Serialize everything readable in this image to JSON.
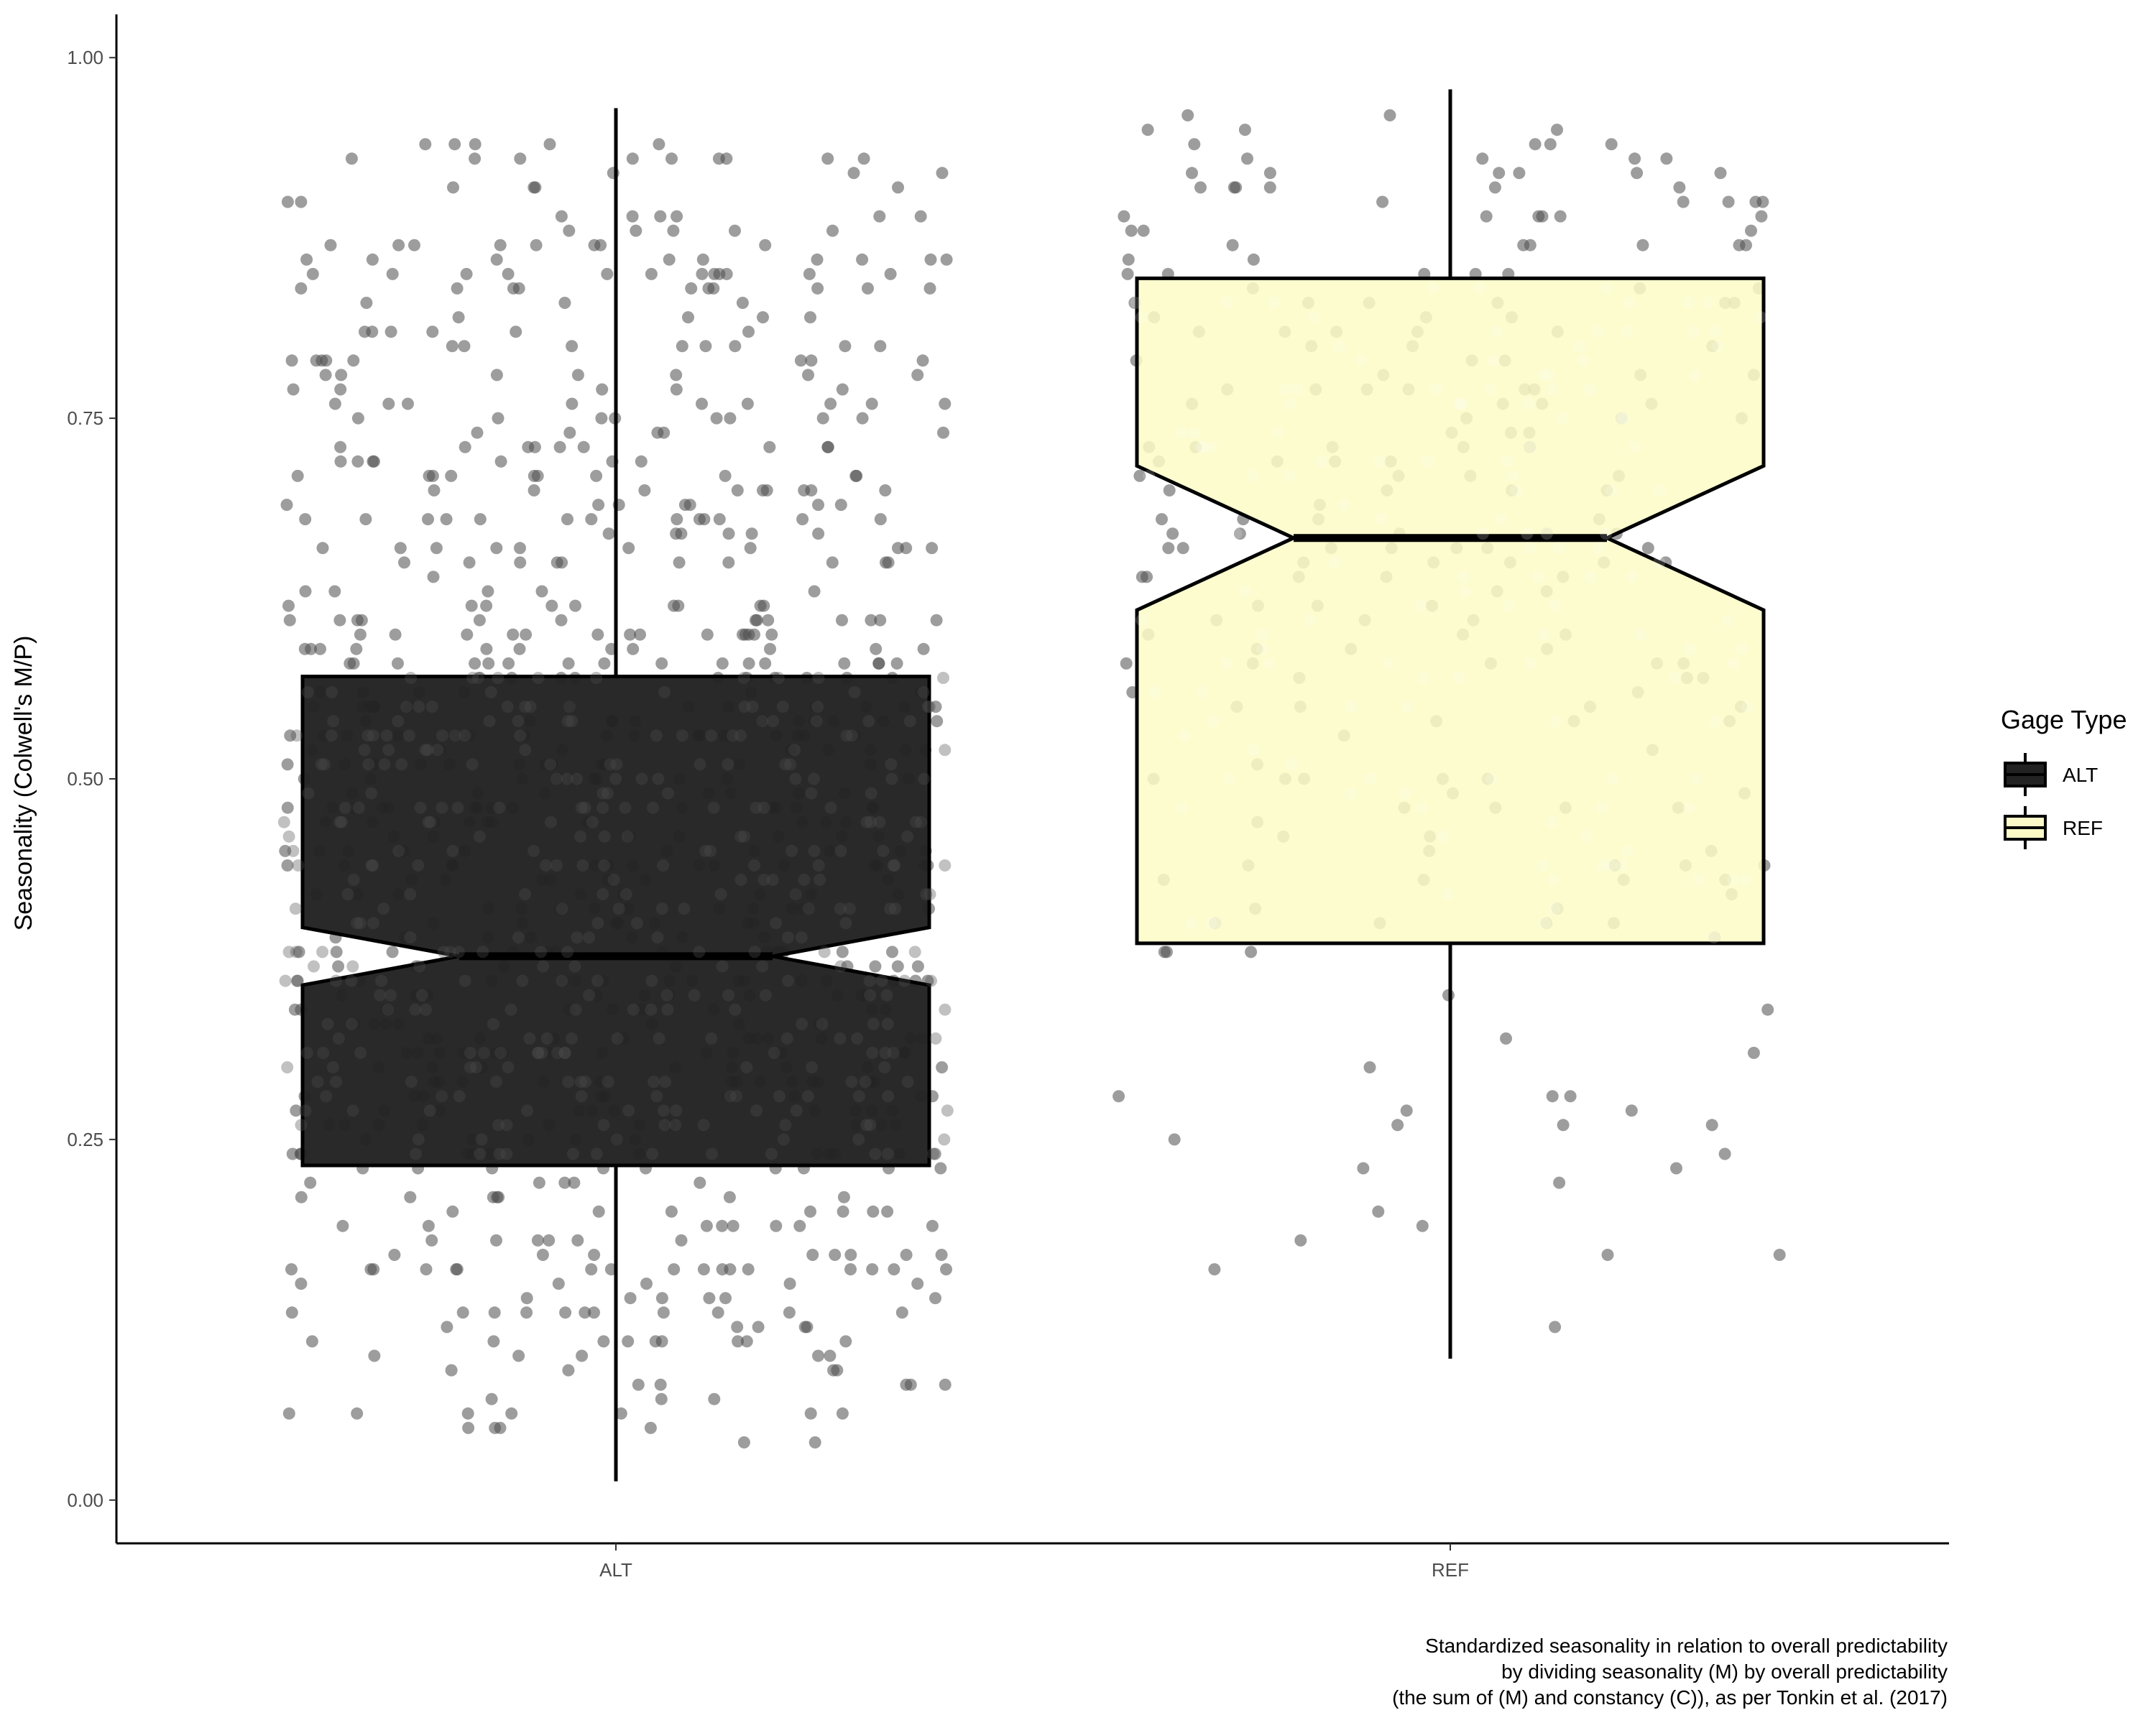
{
  "chart_data": {
    "type": "boxplot",
    "title": "",
    "xlabel": "",
    "ylabel": "Seasonality (Colwell's M/P)",
    "categories": [
      "ALT",
      "REF"
    ],
    "ylim": [
      -0.03,
      1.03
    ],
    "yticks": [
      {
        "value": 0.0,
        "label": "0.00"
      },
      {
        "value": 0.25,
        "label": "0.25"
      },
      {
        "value": 0.5,
        "label": "0.50"
      },
      {
        "value": 0.75,
        "label": "0.75"
      },
      {
        "value": 1.0,
        "label": "1.00"
      }
    ],
    "grid": false,
    "notched": true,
    "jitter_points": true,
    "boxes": [
      {
        "category": "ALT",
        "whisker_low": 0.013,
        "q1": 0.232,
        "median": 0.377,
        "q3": 0.571,
        "whisker_high": 0.965,
        "notch_low": 0.357,
        "notch_high": 0.397,
        "color": "#222222"
      },
      {
        "category": "REF",
        "whisker_low": 0.098,
        "q1": 0.386,
        "median": 0.667,
        "q3": 0.847,
        "whisker_high": 0.978,
        "notch_low": 0.617,
        "notch_high": 0.717,
        "color": "#fcfbc7"
      }
    ],
    "legend": {
      "title": "Gage Type",
      "position": "right",
      "entries": [
        {
          "label": "ALT",
          "color": "#222222"
        },
        {
          "label": "REF",
          "color": "#fcfbc7"
        }
      ]
    },
    "caption": [
      "Standardized seasonality in relation to overall predictability",
      "by dividing seasonality (M) by overall predictability",
      "(the sum of (M) and constancy (C)), as per Tonkin et al. (2017)"
    ],
    "points": {
      "ALT": [
        0.93,
        0.62,
        0.16,
        0.08,
        0.8,
        0.53,
        0.87,
        0.51,
        0.4,
        0.09,
        0.57,
        0.85,
        0.42,
        0.43,
        0.35,
        0.29,
        0.26,
        0.57,
        0.75,
        0.58,
        0.72,
        0.71,
        0.73,
        0.14,
        0.65,
        0.25,
        0.16,
        0.86,
        0.52,
        0.58,
        0.73,
        0.42,
        0.34,
        0.05,
        0.71,
        0.69,
        0.84,
        0.87,
        0.44,
        0.4,
        0.5,
        0.93,
        0.93,
        0.41,
        0.26,
        0.47,
        0.6,
        0.42,
        0.3,
        0.51,
        0.83,
        0.26,
        0.81,
        0.2,
        0.71,
        0.94,
        0.89,
        0.08,
        0.55,
        0.38,
        0.71,
        0.81,
        0.85,
        0.51,
        0.48,
        0.53,
        0.61,
        0.19,
        0.24,
        0.31,
        0.72,
        0.57,
        0.84,
        0.16,
        0.71,
        0.33,
        0.1,
        0.42,
        0.53,
        0.49,
        0.43,
        0.15,
        0.31,
        0.66,
        0.34,
        0.55,
        0.77,
        0.49,
        0.44,
        0.18,
        0.1,
        0.46,
        0.62,
        0.2,
        0.76,
        0.16,
        0.21,
        0.58,
        0.49,
        0.71,
        0.74,
        0.04,
        0.78,
        0.55,
        0.35,
        0.43,
        0.13,
        0.29,
        0.24,
        0.27,
        0.27,
        0.69,
        0.38,
        0.34,
        0.61,
        0.75,
        0.6,
        0.88,
        0.79,
        0.16,
        0.89,
        0.53,
        0.39,
        0.48,
        0.44,
        0.25,
        0.34,
        0.33,
        0.75,
        0.44,
        0.85,
        0.36,
        0.29,
        0.5,
        0.14,
        0.94,
        0.31,
        0.18,
        0.78,
        0.36,
        0.66,
        0.91,
        0.12,
        0.37,
        0.23,
        0.35,
        0.44,
        0.32,
        0.11,
        0.65,
        0.04,
        0.18,
        0.28,
        0.51,
        0.72,
        0.2,
        0.48,
        0.06,
        0.82,
        0.17,
        0.45,
        0.16,
        0.81,
        0.25,
        0.42,
        0.61,
        0.66,
        0.51,
        0.71,
        0.5,
        0.42,
        0.23,
        0.53,
        0.16,
        0.93,
        0.54,
        0.64,
        0.51,
        0.26,
        0.86,
        0.8,
        0.59,
        0.59,
        0.73,
        0.93,
        0.39,
        0.7,
        0.59,
        0.6,
        0.11,
        0.8,
        0.55,
        0.28,
        0.5,
        0.55,
        0.54,
        0.68,
        0.13,
        0.4,
        0.53,
        0.45,
        0.84,
        0.76,
        0.8,
        0.67,
        0.36,
        0.31,
        0.13,
        0.36,
        0.43,
        0.34,
        0.31,
        0.11,
        0.62,
        0.31,
        0.17,
        0.66,
        0.68,
        0.41,
        0.73,
        0.58,
        0.8,
        0.61,
        0.78,
        0.62,
        0.3,
        0.53,
        0.13,
        0.55,
        0.46,
        0.63,
        0.7,
        0.18,
        0.68,
        0.11,
        0.72,
        0.65,
        0.38,
        0.24,
        0.68,
        0.94,
        0.1,
        0.32,
        0.36,
        0.44,
        0.48,
        0.23,
        0.68,
        0.71,
        0.2,
        0.63,
        0.29,
        0.21,
        0.92,
        0.54,
        0.57,
        0.56,
        0.35,
        0.17,
        0.76,
        0.41,
        0.46,
        0.33,
        0.77,
        0.68,
        0.6,
        0.75,
        0.34,
        0.47,
        0.05,
        0.44,
        0.7,
        0.76,
        0.52,
        0.09,
        0.41,
        0.75,
        0.31,
        0.38,
        0.6,
        0.32,
        0.22,
        0.84,
        0.53,
        0.31,
        0.61,
        0.62,
        0.05,
        0.49,
        0.83,
        0.85,
        0.92,
        0.17,
        0.27,
        0.31,
        0.28,
        0.67,
        0.45,
        0.32,
        0.6,
        0.41,
        0.29,
        0.87,
        0.51,
        0.54,
        0.4,
        0.35,
        0.42,
        0.58,
        0.84,
        0.79,
        0.81,
        0.16,
        0.72,
        0.87,
        0.69,
        0.93,
        0.24,
        0.84,
        0.88,
        0.28,
        0.82,
        0.82,
        0.09,
        0.61,
        0.85,
        0.65,
        0.86,
        0.7,
        0.65,
        0.5,
        0.92,
        0.65,
        0.27,
        0.63,
        0.21,
        0.56,
        0.34,
        0.74,
        0.51,
        0.27,
        0.59,
        0.91,
        0.62,
        0.85,
        0.55,
        0.12,
        0.19,
        0.87,
        0.47,
        0.58,
        0.79,
        0.9,
        0.21,
        0.15,
        0.26,
        0.75,
        0.82,
        0.27,
        0.73,
        0.78,
        0.07,
        0.58,
        0.38,
        0.06,
        0.16,
        0.26,
        0.39,
        0.48,
        0.25,
        0.49,
        0.79,
        0.28,
        0.38,
        0.45,
        0.67,
        0.88,
        0.65,
        0.24,
        0.51,
        0.37,
        0.11,
        0.52,
        0.13,
        0.35,
        0.11,
        0.32,
        0.53,
        0.34,
        0.13,
        0.48,
        0.18,
        0.22,
        0.68,
        0.76,
        0.55,
        0.26,
        0.37,
        0.14,
        0.08,
        0.67,
        0.55,
        0.78,
        0.29,
        0.26,
        0.23,
        0.1,
        0.32,
        0.31,
        0.44,
        0.4,
        0.07,
        0.67,
        0.73,
        0.69,
        0.84,
        0.24,
        0.59,
        0.74,
        0.3,
        0.3,
        0.35,
        0.53,
        0.77,
        0.26,
        0.7,
        0.11,
        0.35,
        0.33,
        0.51,
        0.51,
        0.24,
        0.47,
        0.85,
        0.63,
        0.74,
        0.45,
        0.4,
        0.27,
        0.59,
        0.79,
        0.83,
        0.65,
        0.61,
        0.48,
        0.41,
        0.72,
        0.77,
        0.85,
        0.26,
        0.3,
        0.24,
        0.6,
        0.62,
        0.38,
        0.3,
        0.61,
        0.16,
        0.89,
        0.91,
        0.18,
        0.88,
        0.51,
        0.51,
        0.54,
        0.29,
        0.19,
        0.93,
        0.76,
        0.24,
        0.15,
        0.13,
        0.23,
        0.58,
        0.48,
        0.16,
        0.78,
        0.28,
        0.56,
        0.32,
        0.55,
        0.36,
        0.47,
        0.38,
        0.36,
        0.59,
        0.5,
        0.76,
        0.9,
        0.7,
        0.22,
        0.59,
        0.54,
        0.44,
        0.13,
        0.41,
        0.08,
        0.44,
        0.61,
        0.27,
        0.67,
        0.34,
        0.5,
        0.58,
        0.87,
        0.1,
        0.72,
        0.19,
        0.93,
        0.76,
        0.65,
        0.35,
        0.48,
        0.36,
        0.42,
        0.36,
        0.47,
        0.06,
        0.43,
        0.47,
        0.39,
        0.31,
        0.86,
        0.59,
        0.85,
        0.24,
        0.66,
        0.07,
        0.11,
        0.47,
        0.65,
        0.89,
        0.86,
        0.35,
        0.68,
        0.69,
        0.48,
        0.75,
        0.58,
        0.71,
        0.78,
        0.47,
        0.11,
        0.73,
        0.44,
        0.69,
        0.32,
        0.71,
        0.24,
        0.54,
        0.14,
        0.17,
        0.48,
        0.36,
        0.37,
        0.86,
        0.52,
        0.68,
        0.17,
        0.48,
        0.87,
        0.81,
        0.89,
        0.84,
        0.45,
        0.7,
        0.47,
        0.76,
        0.5,
        0.57,
        0.25,
        0.31,
        0.56,
        0.53,
        0.31,
        0.39,
        0.31,
        0.55,
        0.19,
        0.54,
        0.25,
        0.12,
        0.53,
        0.58,
        0.27,
        0.17,
        0.58,
        0.47,
        0.33,
        0.28,
        0.17,
        0.23,
        0.23,
        0.52,
        0.66,
        0.79,
        0.28,
        0.54,
        0.16,
        0.12,
        0.29,
        0.41,
        0.59,
        0.74,
        0.44,
        0.8,
        0.41,
        0.87,
        0.56,
        0.38,
        0.58,
        0.37,
        0.22,
        0.49,
        0.09,
        0.44,
        0.68,
        0.6,
        0.6,
        0.38,
        0.14,
        0.19,
        0.16,
        0.54,
        0.33,
        0.3,
        0.23,
        0.31,
        0.91,
        0.47,
        0.31,
        0.79,
        0.45,
        0.86,
        0.69,
        0.36,
        0.19,
        0.89,
        0.57,
        0.6,
        0.28,
        0.88,
        0.37,
        0.56,
        0.36,
        0.37,
        0.33,
        0.14,
        0.66,
        0.29,
        0.68,
        0.21,
        0.06,
        0.43,
        0.41,
        0.13,
        0.46,
        0.36,
        0.58,
        0.52,
        0.48,
        0.53,
        0.23,
        0.48,
        0.34,
        0.45,
        0.61,
        0.39,
        0.28,
        0.61,
        0.39,
        0.16,
        0.85,
        0.57,
        0.7,
        0.73,
        0.19,
        0.24,
        0.48,
        0.62,
        0.32,
        0.68,
        0.6,
        0.36,
        0.81,
        0.21,
        0.36,
        0.29,
        0.29,
        0.5,
        0.85,
        0.38,
        0.55,
        0.61,
        0.53,
        0.29,
        0.7,
        0.13,
        0.59,
        0.16,
        0.45,
        0.2,
        0.51,
        0.22,
        0.15,
        0.66,
        0.75,
        0.54,
        0.6,
        0.8,
        0.06,
        0.93,
        0.29,
        0.85,
        0.38,
        0.32,
        0.84,
        0.3,
        0.58,
        0.94,
        0.4,
        0.12,
        0.43,
        0.66,
        0.44,
        0.77,
        0.46,
        0.53,
        0.21,
        0.73,
        0.32,
        0.37,
        0.52,
        0.46,
        0.8,
        0.52,
        0.6,
        0.94,
        0.49,
        0.46,
        0.86,
        0.57,
        0.63,
        0.05,
        0.66,
        0.84,
        0.13,
        0.86,
        0.28,
        0.53,
        0.2,
        0.79,
        0.53,
        0.6,
        0.58,
        0.61,
        0.5,
        0.68,
        0.15,
        0.16,
        0.06,
        0.06,
        0.38,
        0.55,
        0.42,
        0.57,
        0.2,
        0.45,
        0.08,
        0.62,
        0.16,
        0.57,
        0.46,
        0.27,
        0.41
      ],
      "REF": [
        0.71,
        0.61,
        0.81,
        0.85,
        0.96,
        0.62,
        0.62,
        0.65,
        0.28,
        0.58,
        0.68,
        0.25,
        0.92,
        0.48,
        0.17,
        0.58,
        0.35,
        0.28,
        0.46,
        0.38,
        0.7,
        0.87,
        0.68,
        0.92,
        0.66,
        0.83,
        0.64,
        0.38,
        0.83,
        0.77,
        0.8,
        0.65,
        0.38,
        0.67,
        0.89,
        0.48,
        0.64,
        0.88,
        0.9,
        0.93,
        0.18,
        0.16,
        0.27,
        0.46,
        0.73,
        0.26,
        0.39,
        0.5,
        0.58,
        0.34,
        0.2,
        0.8,
        0.44,
        0.41,
        0.85,
        0.3,
        0.28,
        0.93,
        0.22,
        0.57,
        0.84,
        0.91,
        0.64,
        0.19,
        0.69,
        0.87,
        0.87,
        0.54,
        0.72,
        0.44,
        0.61,
        0.27,
        0.31,
        0.23,
        0.4,
        0.91,
        0.12,
        0.81,
        0.4,
        0.54,
        0.88,
        0.82,
        0.52,
        0.76,
        0.71,
        0.83,
        0.83,
        0.62,
        0.77,
        0.88,
        0.93,
        0.91,
        0.75,
        0.81,
        0.9,
        0.77,
        0.78,
        0.56,
        0.94,
        0.55,
        0.91,
        0.73,
        0.71,
        0.66,
        0.53,
        0.67,
        0.65,
        0.95,
        0.7,
        0.67,
        0.85,
        0.55,
        0.66,
        0.66,
        0.57,
        0.92,
        0.9,
        0.86,
        0.95,
        0.26,
        0.94,
        0.26,
        0.81,
        0.17,
        0.92,
        0.9,
        0.9,
        0.65,
        0.92,
        0.94,
        0.56,
        0.78,
        0.82,
        0.49,
        0.57,
        0.87,
        0.67,
        0.63,
        0.5,
        0.49,
        0.4,
        0.91,
        0.87,
        0.55,
        0.55,
        0.45,
        0.73,
        0.85,
        0.83,
        0.74,
        0.32,
        0.84,
        0.76,
        0.72,
        0.68,
        0.4,
        0.76,
        0.6,
        0.43,
        0.59,
        0.89,
        0.78,
        0.77,
        0.43,
        0.58,
        0.75,
        0.66,
        0.85,
        0.67,
        0.79,
        0.61,
        0.43,
        0.74,
        0.76,
        0.64,
        0.47,
        0.44,
        0.95,
        0.94,
        0.75,
        0.48,
        0.73,
        0.54,
        0.68,
        0.41,
        0.72,
        0.59,
        0.6,
        0.8,
        0.96,
        0.43,
        0.89,
        0.77,
        0.89,
        0.5,
        0.86,
        0.23,
        0.65,
        0.45,
        0.79,
        0.92,
        0.89,
        0.5,
        0.24,
        0.91,
        0.5,
        0.72,
        0.66,
        0.44,
        0.64,
        0.79,
        0.73,
        0.7,
        0.63,
        0.71,
        0.74,
        0.89,
        0.82,
        0.7,
        0.42,
        0.59,
        0.51,
        0.87,
        0.83,
        0.58,
        0.77,
        0.84,
        0.66,
        0.48,
        0.81,
        0.6,
        0.93
      ]
    }
  }
}
